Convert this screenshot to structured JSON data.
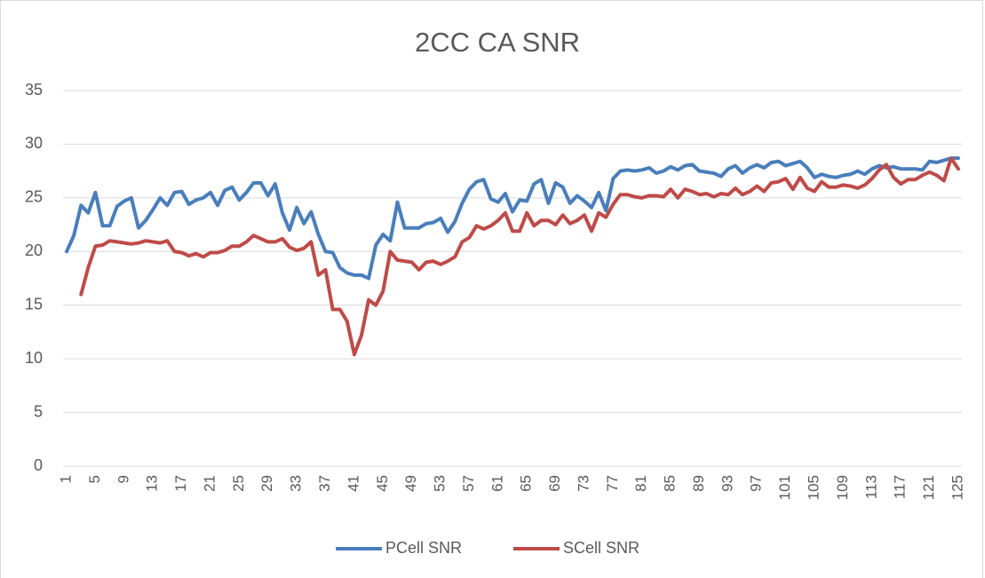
{
  "chart_data": {
    "type": "line",
    "title": "2CC CA SNR",
    "categories": [
      1,
      null,
      null,
      null,
      5,
      null,
      null,
      null,
      9,
      null,
      null,
      null,
      13,
      null,
      null,
      null,
      17,
      null,
      null,
      null,
      21,
      null,
      null,
      null,
      25,
      null,
      null,
      null,
      29,
      null,
      null,
      null,
      33,
      null,
      null,
      null,
      37,
      null,
      null,
      null,
      41,
      null,
      null,
      null,
      45,
      null,
      null,
      null,
      49,
      null,
      null,
      null,
      53,
      null,
      null,
      null,
      57,
      null,
      null,
      null,
      61,
      null,
      null,
      null,
      65,
      null,
      null,
      null,
      69,
      null,
      null,
      null,
      73,
      null,
      null,
      null,
      77,
      null,
      null,
      null,
      81,
      null,
      null,
      null,
      85,
      null,
      null,
      null,
      89,
      null,
      null,
      null,
      93,
      null,
      null,
      null,
      97,
      null,
      null,
      null,
      101,
      null,
      null,
      null,
      105,
      null,
      null,
      null,
      109,
      null,
      null,
      null,
      113,
      null,
      null,
      null,
      117,
      null,
      null,
      null,
      121,
      null,
      null,
      null,
      125
    ],
    "series": [
      {
        "name": "PCell SNR",
        "color": "#4a7ebb",
        "values": [
          20,
          21.5,
          24.3,
          23.6,
          25.5,
          22.4,
          22.4,
          24.2,
          24.7,
          25,
          22.2,
          22.9,
          23.9,
          25,
          24.3,
          25.5,
          25.6,
          24.4,
          24.8,
          25,
          25.5,
          24.3,
          25.7,
          26,
          24.8,
          25.5,
          26.4,
          26.4,
          25.2,
          26.3,
          23.6,
          22,
          24.1,
          22.6,
          23.7,
          21.6,
          20,
          19.9,
          18.5,
          18,
          17.8,
          17.8,
          17.5,
          20.6,
          21.6,
          21,
          24.6,
          22.2,
          22.2,
          22.2,
          22.6,
          22.7,
          23.1,
          21.8,
          22.8,
          24.5,
          25.8,
          26.5,
          26.7,
          24.9,
          24.6,
          25.4,
          23.7,
          24.8,
          24.7,
          26.3,
          26.7,
          24.5,
          26.4,
          26,
          24.5,
          25.2,
          24.7,
          24.1,
          25.5,
          23.8,
          26.8,
          27.5,
          27.6,
          27.5,
          27.6,
          27.8,
          27.3,
          27.5,
          27.9,
          27.6,
          28,
          28.1,
          27.5,
          27.4,
          27.3,
          27,
          27.7,
          28,
          27.3,
          27.8,
          28.1,
          27.8,
          28.3,
          28.4,
          28,
          28.2,
          28.4,
          27.8,
          26.9,
          27.2,
          27,
          26.9,
          27.1,
          27.2,
          27.5,
          27.2,
          27.7,
          28,
          27.8,
          27.9,
          27.7,
          27.7,
          27.7,
          27.6,
          28.4,
          28.3,
          28.5,
          28.7,
          28.7
        ]
      },
      {
        "name": "SCell SNR",
        "color": "#be4b48",
        "values": [
          null,
          null,
          16,
          18.5,
          20.5,
          20.6,
          21,
          20.9,
          20.8,
          20.7,
          20.8,
          21,
          20.9,
          20.8,
          21,
          20,
          19.9,
          19.6,
          19.8,
          19.5,
          19.9,
          19.9,
          20.1,
          20.5,
          20.5,
          20.9,
          21.5,
          21.2,
          20.9,
          20.9,
          21.2,
          20.4,
          20.1,
          20.3,
          20.9,
          17.8,
          18.3,
          14.6,
          14.6,
          13.5,
          10.4,
          12.2,
          15.5,
          15,
          16.3,
          20,
          19.2,
          19.1,
          19,
          18.3,
          19,
          19.1,
          18.8,
          19.1,
          19.5,
          20.9,
          21.3,
          22.4,
          22.1,
          22.4,
          22.9,
          23.6,
          21.9,
          21.9,
          23.6,
          22.4,
          22.9,
          22.9,
          22.5,
          23.4,
          22.6,
          22.9,
          23.4,
          21.9,
          23.6,
          23.2,
          24.4,
          25.3,
          25.3,
          25.1,
          25,
          25.2,
          25.2,
          25.1,
          25.8,
          25,
          25.8,
          25.6,
          25.3,
          25.4,
          25.1,
          25.4,
          25.3,
          25.9,
          25.3,
          25.6,
          26.1,
          25.6,
          26.4,
          26.5,
          26.8,
          25.8,
          26.9,
          25.9,
          25.6,
          26.5,
          26,
          26,
          26.2,
          26.1,
          25.9,
          26.2,
          26.8,
          27.6,
          28.1,
          26.9,
          26.3,
          26.7,
          26.7,
          27.1,
          27.4,
          27.1,
          26.6,
          28.7,
          27.7
        ]
      }
    ],
    "ylim": [
      0,
      35
    ],
    "yticks": [
      0,
      5,
      10,
      15,
      20,
      25,
      30,
      35
    ],
    "grid": true,
    "legend": "bottom"
  }
}
